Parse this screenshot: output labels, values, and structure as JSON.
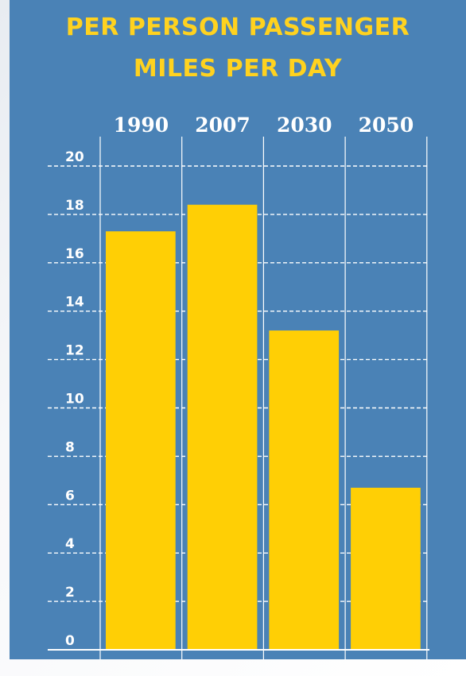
{
  "title_lines": [
    "PER PERSON PASSENGER",
    "MILES PER DAY"
  ],
  "colors": {
    "background": "#4a82b6",
    "bar": "#ffcf05",
    "title": "#ffd21f",
    "lines": "#ffffff"
  },
  "chart_data": {
    "type": "bar",
    "title": "PER PERSON PASSENGER MILES PER DAY",
    "categories": [
      "1990",
      "2007",
      "2030",
      "2050"
    ],
    "values": [
      17.3,
      18.4,
      13.2,
      6.7
    ],
    "ylim": [
      0,
      20
    ],
    "yticks": [
      "0",
      "2",
      "4",
      "6",
      "8",
      "10",
      "12",
      "14",
      "16",
      "18",
      "20"
    ],
    "xlabel": "",
    "ylabel": "",
    "grid": true,
    "legend": "none"
  }
}
